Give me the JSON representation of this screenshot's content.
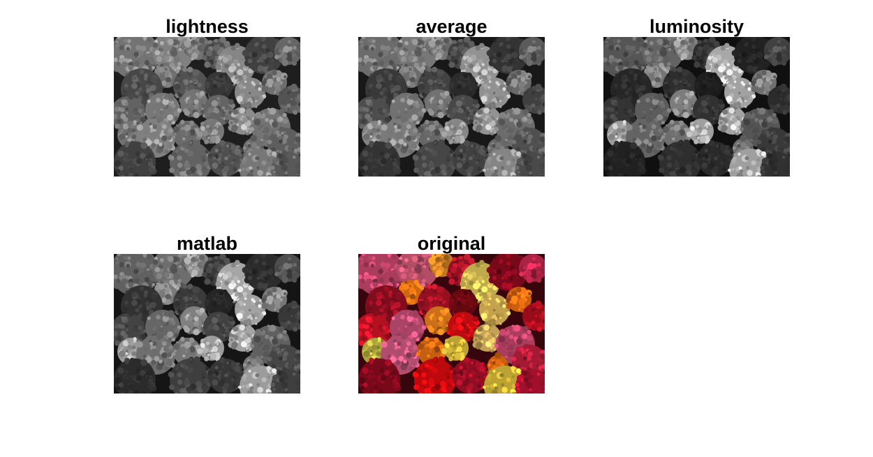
{
  "figure": {
    "panels": [
      {
        "id": "lightness",
        "title": "lightness",
        "mode": "gray",
        "tone": "lightness"
      },
      {
        "id": "average",
        "title": "average",
        "mode": "gray",
        "tone": "average"
      },
      {
        "id": "luminosity",
        "title": "luminosity",
        "mode": "gray",
        "tone": "luminosity"
      },
      {
        "id": "matlab",
        "title": "matlab",
        "mode": "gray",
        "tone": "matlab"
      },
      {
        "id": "original",
        "title": "original",
        "mode": "color",
        "tone": "original"
      }
    ]
  }
}
